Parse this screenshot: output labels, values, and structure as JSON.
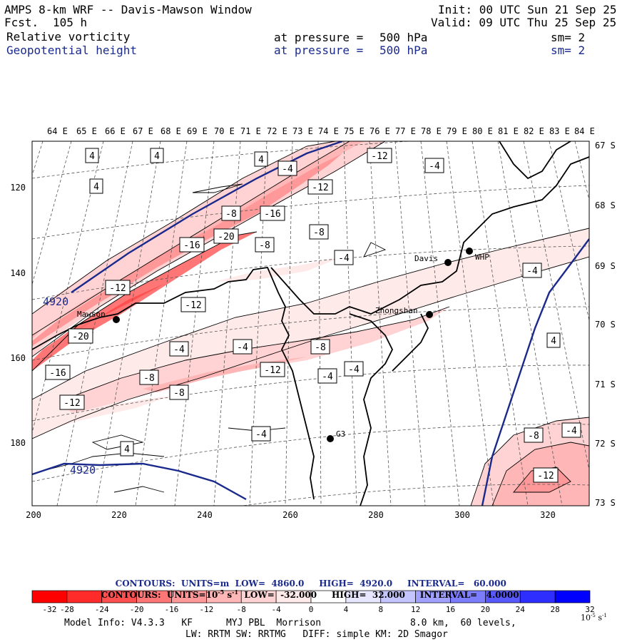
{
  "header": {
    "title": "AMPS 8-km WRF -- Davis-Mawson Window",
    "fcst_label": "Fcst.",
    "fcst_value": "105 h",
    "init": "Init: 00 UTC Sun 21 Sep 25",
    "valid": "Valid: 09 UTC Thu 25 Sep 25",
    "field1": {
      "name": "Relative vorticity",
      "pressure_label": "at pressure =",
      "pressure": "500 hPa",
      "sm": "sm= 2"
    },
    "field2": {
      "name": "Geopotential height",
      "pressure_label": "at pressure =",
      "pressure": "500 hPa",
      "sm": "sm= 2"
    }
  },
  "map": {
    "top_lon_labels": [
      "64 E",
      "65 E",
      "66 E",
      "67 E",
      "68 E",
      "69 E",
      "70 E",
      "71 E",
      "72 E",
      "73 E",
      "74 E",
      "75 E",
      "76 E",
      "77 E",
      "78 E",
      "79 E",
      "80 E",
      "81 E",
      "82 E",
      "83 E",
      "84 E"
    ],
    "right_lat_labels": [
      "67 S",
      "68 S",
      "69 S",
      "70 S",
      "71 S",
      "72 S",
      "73 S"
    ],
    "left_y_labels": [
      "120",
      "140",
      "160",
      "180"
    ],
    "bottom_x_labels": [
      "200",
      "220",
      "240",
      "260",
      "280",
      "300",
      "320"
    ],
    "stations": [
      "Mawson",
      "Davis",
      "WHP",
      "Zhongshan",
      "G3"
    ],
    "height_contour_label": "4920",
    "vorticity_labels": [
      {
        "v": "4"
      },
      {
        "v": "4"
      },
      {
        "v": "4"
      },
      {
        "v": "4"
      },
      {
        "v": "-4"
      },
      {
        "v": "-12"
      },
      {
        "v": "-4"
      },
      {
        "v": "-12"
      },
      {
        "v": "-8"
      },
      {
        "v": "-16"
      },
      {
        "v": "-20"
      },
      {
        "v": "-16"
      },
      {
        "v": "-8"
      },
      {
        "v": "-8"
      },
      {
        "v": "-4"
      },
      {
        "v": "-12"
      },
      {
        "v": "-12"
      },
      {
        "v": "-20"
      },
      {
        "v": "-4"
      },
      {
        "v": "-4"
      },
      {
        "v": "-8"
      },
      {
        "v": "-16"
      },
      {
        "v": "-8"
      },
      {
        "v": "-12"
      },
      {
        "v": "-4"
      },
      {
        "v": "-4"
      },
      {
        "v": "-8"
      },
      {
        "v": "-12"
      },
      {
        "v": "-4"
      },
      {
        "v": "4"
      },
      {
        "v": "4"
      },
      {
        "v": "-8"
      },
      {
        "v": "-4"
      },
      {
        "v": "-12"
      },
      {
        "v": "-4"
      }
    ]
  },
  "contours_info": {
    "line1": {
      "label": "CONTOURS:",
      "units": "UNITS=m",
      "low": "LOW=  4860.0",
      "high": "HIGH=  4920.0",
      "interval": "INTERVAL=   60.000"
    },
    "line2": {
      "label": "CONTOURS:",
      "units": "UNITS=10",
      "units_exp": "-5",
      "units_tail": " s",
      "units_tail_exp": "-1",
      "low": "LOW=  -32.000",
      "high": "HIGH=  32.000",
      "interval": "INTERVAL=   4.0000"
    }
  },
  "colorbar": {
    "ticks": [
      "-32",
      "-28",
      "-24",
      "-20",
      "-16",
      "-12",
      "-8",
      "-4",
      "0",
      "4",
      "8",
      "12",
      "16",
      "20",
      "24",
      "28",
      "32"
    ],
    "units_base": "10",
    "units_exp": "-5",
    "units_tail": " s",
    "units_tail_exp": "-1",
    "colors": [
      "#ff0000",
      "#ff2a2a",
      "#ff4f4f",
      "#ff7676",
      "#ff9999",
      "#ffb6b6",
      "#ffd3d3",
      "#ffeaea",
      "#ffffff",
      "#ffffff",
      "#e6e6ff",
      "#c4c4ff",
      "#a0a0ff",
      "#7c7cff",
      "#5858ff",
      "#2e2eff",
      "#0000ff"
    ]
  },
  "footer": {
    "model_info": "Model Info: V4.3.3   KF      MYJ PBL  Morrison",
    "grid": "8.0 km,  60 levels,",
    "physics": "LW: RRTM SW: RRTMG   DIFF: simple KM: 2D Smagor"
  }
}
